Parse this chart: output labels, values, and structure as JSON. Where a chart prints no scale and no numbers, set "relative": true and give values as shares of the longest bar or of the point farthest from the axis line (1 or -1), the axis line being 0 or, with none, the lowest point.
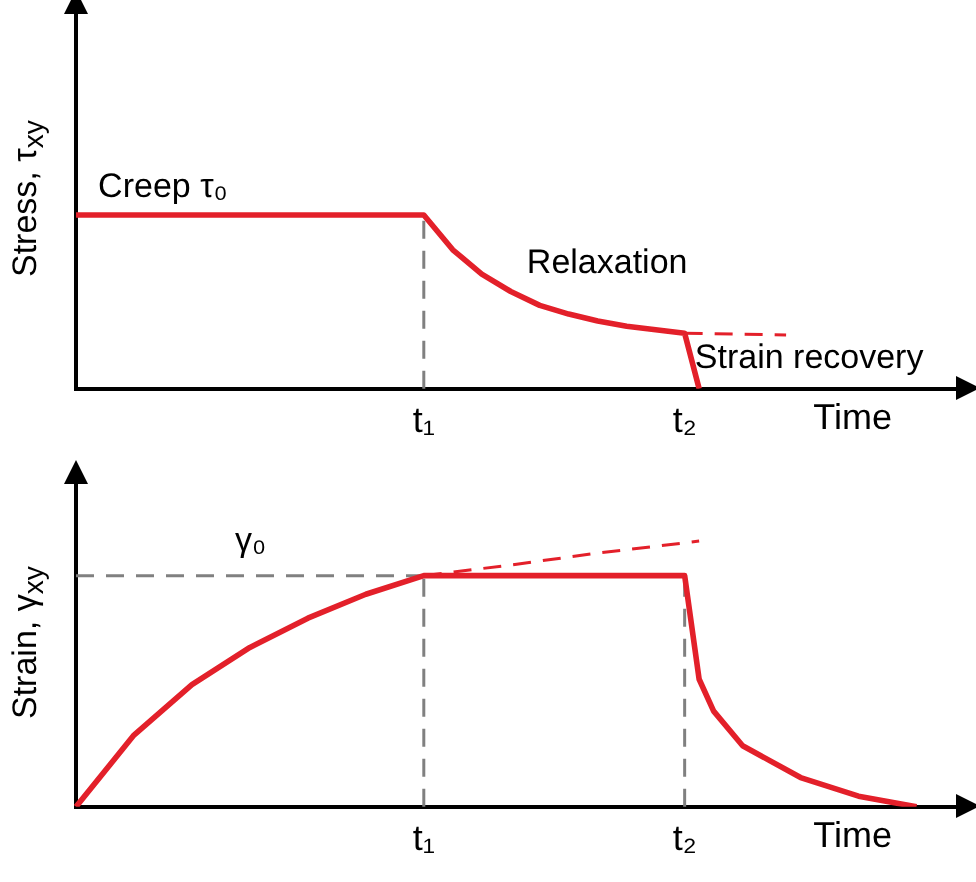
{
  "chart_data": [
    {
      "type": "line",
      "relative": true,
      "ylabel": "Stress, τ$_{xy}$",
      "xlabel": "Time",
      "grid": false,
      "legend": false,
      "tick_labels": "x",
      "marker": "none",
      "categories": [
        null,
        null,
        null,
        null,
        null,
        null,
        null,
        null,
        null,
        null,
        null,
        null,
        null,
        null,
        null,
        null,
        null,
        null,
        null,
        null,
        null,
        null,
        null,
        null,
        "t₁",
        null,
        null,
        null,
        null,
        null,
        null,
        null,
        null,
        null,
        null,
        null,
        null,
        null,
        null,
        null,
        null,
        null,
        "t₂",
        null,
        null,
        null,
        null,
        null,
        null,
        null,
        null,
        null,
        null,
        null,
        null,
        null,
        null,
        null,
        null,
        null,
        null,
        null
      ],
      "series": [
        {
          "color": "#e3202a",
          "line_style": "solid",
          "values": [
            1,
            null,
            null,
            null,
            null,
            null,
            null,
            null,
            null,
            null,
            null,
            null,
            null,
            null,
            null,
            null,
            null,
            null,
            null,
            null,
            null,
            null,
            null,
            null,
            1,
            null,
            0.8,
            null,
            0.66,
            null,
            0.56,
            null,
            0.48,
            null,
            0.43,
            null,
            0.39,
            null,
            0.36,
            null,
            0.34,
            null,
            0.32,
            0,
            null,
            null,
            null,
            null,
            null,
            null,
            null,
            null,
            null,
            null,
            null,
            null,
            null,
            null,
            null,
            null,
            null,
            null
          ]
        },
        {
          "color": "#e3202a",
          "line_style": "dashed",
          "values": [
            null,
            null,
            null,
            null,
            null,
            null,
            null,
            null,
            null,
            null,
            null,
            null,
            null,
            null,
            null,
            null,
            null,
            null,
            null,
            null,
            null,
            null,
            null,
            null,
            null,
            null,
            null,
            null,
            null,
            null,
            null,
            null,
            null,
            null,
            null,
            null,
            null,
            null,
            null,
            null,
            null,
            null,
            0.32,
            null,
            null,
            null,
            null,
            null,
            null,
            0.31,
            null,
            null,
            null,
            null,
            null,
            null,
            null,
            null,
            null,
            null,
            null,
            null
          ]
        }
      ],
      "ref_lines": [
        {
          "axis": "x",
          "value": "t₁",
          "color": "#808080",
          "line_style": "dashed"
        }
      ],
      "annotations": [
        "Creep τ₀",
        "Relaxation",
        "Strain recovery"
      ]
    },
    {
      "type": "line",
      "relative": true,
      "ylabel": "Strain, γ$_{xy}$",
      "xlabel": "Time",
      "grid": false,
      "legend": false,
      "tick_labels": "x",
      "marker": "none",
      "categories": [
        null,
        null,
        null,
        null,
        null,
        null,
        null,
        null,
        null,
        null,
        null,
        null,
        null,
        null,
        null,
        null,
        null,
        null,
        null,
        null,
        null,
        null,
        null,
        null,
        "t₁",
        null,
        null,
        null,
        null,
        null,
        null,
        null,
        null,
        null,
        null,
        null,
        null,
        null,
        null,
        null,
        null,
        null,
        "t₂",
        null,
        null,
        null,
        null,
        null,
        null,
        null,
        null,
        null,
        null,
        null,
        null,
        null,
        null,
        null,
        null,
        null,
        null,
        null
      ],
      "series": [
        {
          "color": "#e3202a",
          "line_style": "solid",
          "values": [
            0,
            null,
            null,
            null,
            0.27,
            null,
            null,
            null,
            0.46,
            null,
            null,
            null,
            0.6,
            null,
            null,
            null,
            0.71,
            null,
            null,
            null,
            0.8,
            null,
            null,
            null,
            0.87,
            null,
            null,
            null,
            null,
            null,
            null,
            null,
            null,
            null,
            null,
            null,
            null,
            null,
            null,
            null,
            null,
            null,
            0.87,
            0.48,
            0.36,
            null,
            0.23,
            null,
            null,
            null,
            0.11,
            null,
            null,
            null,
            0.04,
            null,
            null,
            null,
            0,
            null,
            null,
            null
          ]
        },
        {
          "color": "#e3202a",
          "line_style": "dashed",
          "values": [
            null,
            null,
            null,
            null,
            null,
            null,
            null,
            null,
            null,
            null,
            null,
            null,
            null,
            null,
            null,
            null,
            null,
            null,
            null,
            null,
            null,
            null,
            null,
            null,
            0.87,
            null,
            null,
            null,
            null,
            null,
            0.91,
            null,
            null,
            null,
            null,
            null,
            0.955,
            null,
            null,
            null,
            null,
            null,
            null,
            1,
            null,
            null,
            null,
            null,
            null,
            null,
            null,
            null,
            null,
            null,
            null,
            null,
            null,
            null,
            null,
            null,
            null,
            null
          ]
        }
      ],
      "ref_lines": [
        {
          "axis": "y",
          "value": 0.87,
          "color": "#808080",
          "line_style": "dashed"
        },
        {
          "axis": "x",
          "value": "t₁",
          "color": "#808080",
          "line_style": "dashed"
        },
        {
          "axis": "x",
          "value": "t₂",
          "color": "#808080",
          "line_style": "dashed"
        }
      ],
      "annotations": [
        "γ₀"
      ]
    }
  ]
}
